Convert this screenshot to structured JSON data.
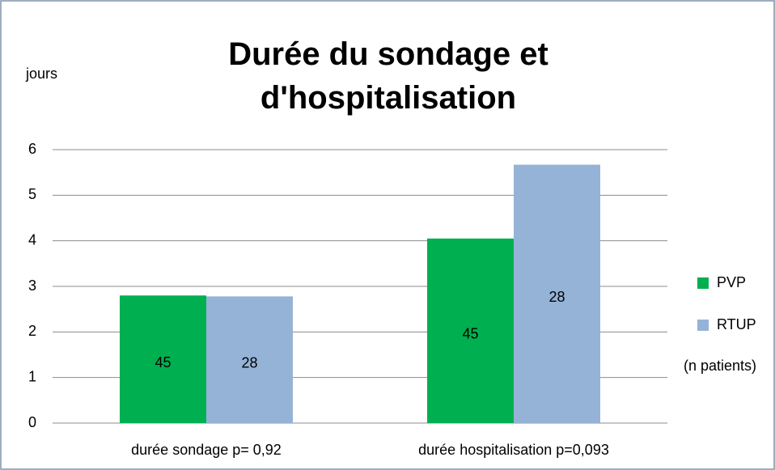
{
  "chart_data": {
    "type": "bar",
    "title": "Durée du sondage et d'hospitalisation",
    "y_label": "jours",
    "legend_note": "(n patients)",
    "categories": [
      "durée sondage p= 0,92",
      "durée hospitalisation p=0,093"
    ],
    "series": [
      {
        "name": "PVP",
        "color": "#00b050",
        "values": [
          2.8,
          4.05
        ],
        "n": [
          45,
          45
        ]
      },
      {
        "name": "RTUP",
        "color": "#95b3d7",
        "values": [
          2.78,
          5.67
        ],
        "n": [
          28,
          28
        ]
      }
    ],
    "ylim": [
      0,
      6
    ],
    "yticks": [
      0,
      1,
      2,
      3,
      4,
      5,
      6
    ],
    "grid": true,
    "legend": "right"
  }
}
